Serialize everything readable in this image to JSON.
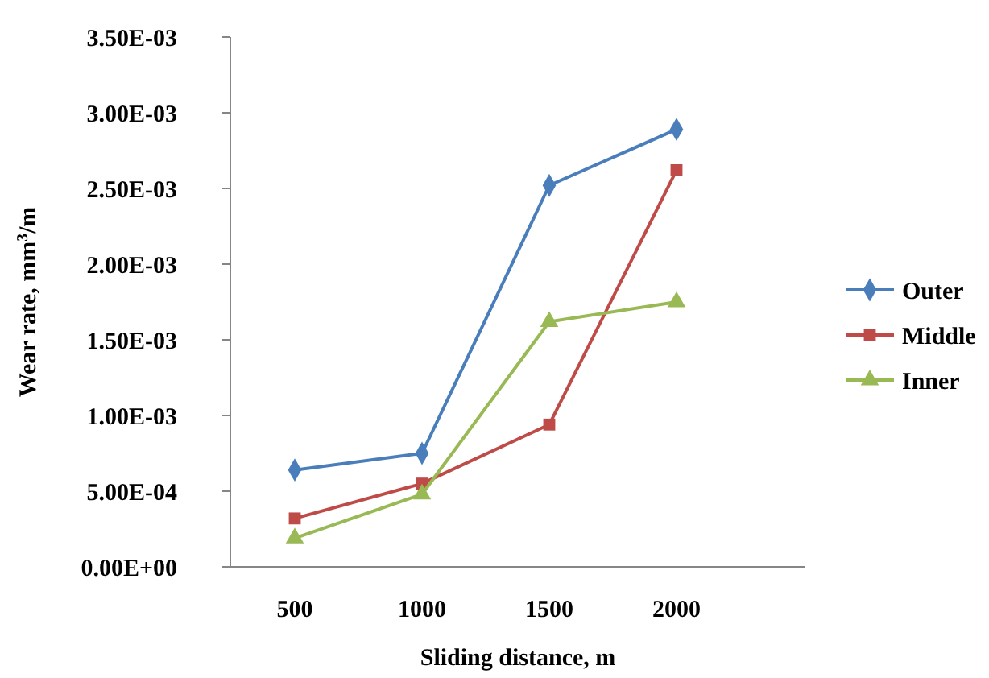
{
  "chart_data": {
    "type": "line",
    "xlabel": "Sliding distance, m",
    "ylabel": "Wear rate, mm$^{3}$/m",
    "categories": [
      "500",
      "1000",
      "1500",
      "2000"
    ],
    "ylim": [
      0,
      0.0035
    ],
    "yticks": [
      {
        "value": 0,
        "label": "0.00E+00"
      },
      {
        "value": 0.0005,
        "label": "5.00E-04"
      },
      {
        "value": 0.001,
        "label": "1.00E-03"
      },
      {
        "value": 0.0015,
        "label": "1.50E-03"
      },
      {
        "value": 0.002,
        "label": "2.00E-03"
      },
      {
        "value": 0.0025,
        "label": "2.50E-03"
      },
      {
        "value": 0.003,
        "label": "3.00E-03"
      },
      {
        "value": 0.0035,
        "label": "3.50E-03"
      }
    ],
    "legend": "right",
    "series": [
      {
        "name": "Outer",
        "color": "#4a7ebb",
        "marker": "diamond",
        "values": [
          0.00064,
          0.00075,
          0.00252,
          0.00289
        ]
      },
      {
        "name": "Middle",
        "color": "#be4b48",
        "marker": "square",
        "values": [
          0.00032,
          0.00055,
          0.00094,
          0.00262
        ]
      },
      {
        "name": "Inner",
        "color": "#98b954",
        "marker": "triangle",
        "values": [
          0.00019,
          0.00048,
          0.00162,
          0.00175
        ]
      }
    ]
  }
}
